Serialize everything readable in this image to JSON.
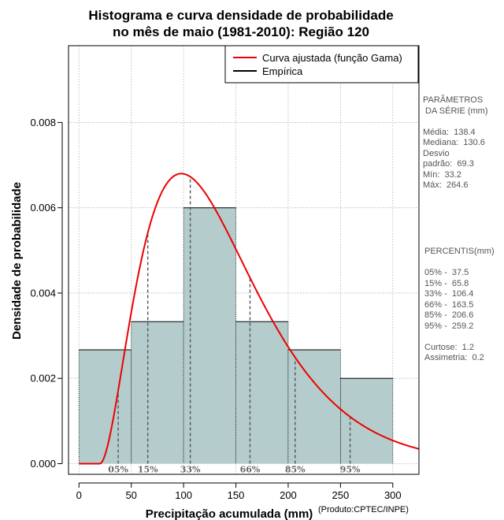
{
  "chart_data": {
    "type": "histogram",
    "title_lines": [
      "Histograma e curva densidade de probabilidade",
      "no mês de maio (1981-2010): Região 120"
    ],
    "xlabel": "Precipitação acumulada (mm)",
    "ylabel": "Densidade de probabilidade",
    "xlim": [
      -10,
      325
    ],
    "ylim": [
      -0.00025,
      0.0098
    ],
    "x_ticks": [
      0,
      50,
      100,
      150,
      200,
      250,
      300
    ],
    "y_ticks": [
      0.0,
      0.002,
      0.004,
      0.006,
      0.008
    ],
    "y_tick_labels": [
      "0.000",
      "0.002",
      "0.004",
      "0.006",
      "0.008"
    ],
    "grid": true,
    "bins": [
      {
        "from": 0,
        "to": 50,
        "density": 0.00267
      },
      {
        "from": 50,
        "to": 100,
        "density": 0.00333
      },
      {
        "from": 100,
        "to": 150,
        "density": 0.006
      },
      {
        "from": 150,
        "to": 200,
        "density": 0.00333
      },
      {
        "from": 200,
        "to": 250,
        "density": 0.00267
      },
      {
        "from": 250,
        "to": 300,
        "density": 0.002
      }
    ],
    "gamma_fit": {
      "mean": 138.4,
      "sd": 69.3,
      "shift": 20
    },
    "percentile_markers": [
      {
        "label": "05%",
        "x": 37.5
      },
      {
        "label": "15%",
        "x": 65.8
      },
      {
        "label": "33%",
        "x": 106.4
      },
      {
        "label": "66%",
        "x": 163.5
      },
      {
        "label": "85%",
        "x": 206.6
      },
      {
        "label": "95%",
        "x": 259.2
      }
    ],
    "legend": {
      "position": "top-right",
      "entries": [
        {
          "label": "Curva ajustada (função Gama)",
          "color": "#ee0000"
        },
        {
          "label": "Empírica",
          "color": "#000000"
        }
      ]
    },
    "colors": {
      "bar_fill": "#b4cccc",
      "curve": "#ee0000",
      "marker": "#555555"
    }
  },
  "sidebar": {
    "params_text": "PARÂMETROS\n DA SÉRIE (mm)\n\nMédia:  138.4\nMediana:  130.6\nDesvio\npadrão:  69.3\nMín:  33.2\nMáx:  264.6",
    "percentis_text": "PERCENTIS(mm)\n\n05% -  37.5\n15% -  65.8\n33% -  106.4\n66% -  163.5\n85% -  206.6\n95% -  259.2\n\nCurtose:  1.2\nAssimetria:  0.2"
  },
  "credit": "(Produto:CPTEC/INPE)"
}
